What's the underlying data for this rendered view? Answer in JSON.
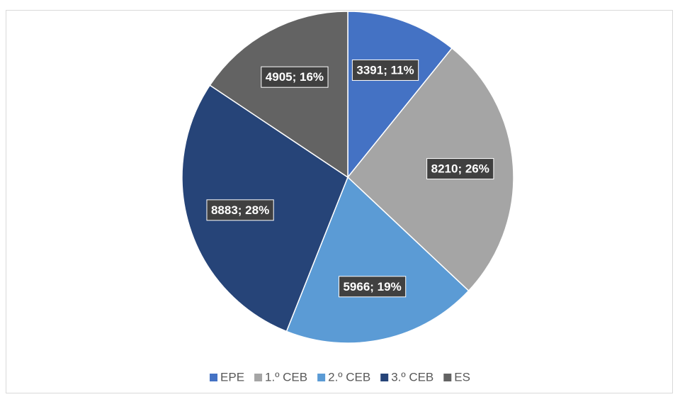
{
  "chart_data": {
    "type": "pie",
    "categories": [
      "EPE",
      "1.º CEB",
      "2.º CEB",
      "3.º CEB",
      "ES"
    ],
    "values": [
      3391,
      8210,
      5966,
      8883,
      4905
    ],
    "value_labels": [
      "3391; 11%",
      "8210; 26%",
      "5966; 19%",
      "8883; 28%",
      "4905; 16%"
    ],
    "colors": [
      "#4472c4",
      "#a5a5a5",
      "#5b9bd5",
      "#264478",
      "#636363"
    ],
    "legend": "bottom"
  }
}
